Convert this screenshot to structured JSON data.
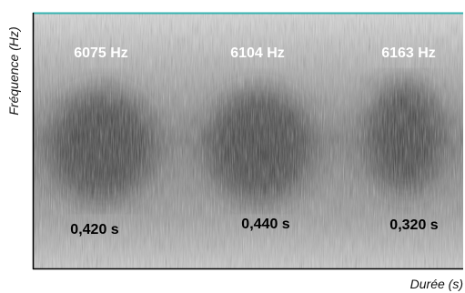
{
  "chart_data": {
    "type": "heatmap",
    "title": "",
    "xlabel": "Durée (s)",
    "ylabel": "Fréquence (Hz)",
    "colormap": "grayscale",
    "grid": false,
    "topline_color": "#36b3b0",
    "segments": [
      {
        "frequency": "6075 Hz",
        "duration": "0,420 s"
      },
      {
        "frequency": "6104 Hz",
        "duration": "0,440 s"
      },
      {
        "frequency": "6163 Hz",
        "duration": "0,320 s"
      }
    ]
  }
}
